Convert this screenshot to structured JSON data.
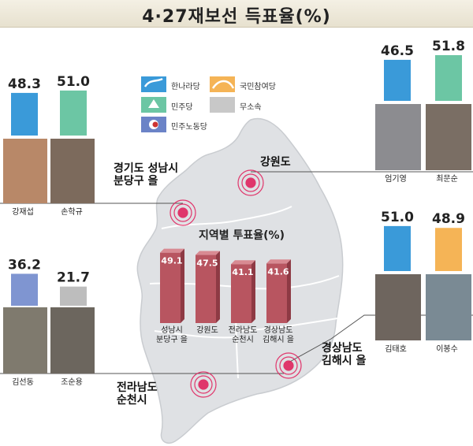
{
  "title": "4·27재보선 득표율(%)",
  "legend": [
    {
      "label": "한나라당",
      "color": "#3a9ad9",
      "icon": "hannara-party-icon"
    },
    {
      "label": "국민참여당",
      "color": "#f5b456",
      "icon": "participation-party-icon"
    },
    {
      "label": "민주당",
      "color": "#6cc6a4",
      "icon": "democratic-party-icon"
    },
    {
      "label": "무소속",
      "color": "#bdbdbd",
      "icon": "independent-icon"
    },
    {
      "label": "민주노동당",
      "color": "#7f95d1",
      "icon": "labor-party-icon"
    }
  ],
  "regions": {
    "seongnam": "경기도 성남시\n분당구 을",
    "gangwon": "강원도",
    "gimhae": "경상남도\n김해시 을",
    "suncheon": "전라남도\n순천시"
  },
  "chart_data": [
    {
      "type": "bar",
      "region": "경기도 성남시 분당구 을",
      "categories": [
        "강재섭",
        "손학규"
      ],
      "values": [
        48.3,
        51.0
      ],
      "colors": [
        "#3a9ad9",
        "#6cc6a4"
      ]
    },
    {
      "type": "bar",
      "region": "강원도",
      "categories": [
        "엄기영",
        "최문순"
      ],
      "values": [
        46.5,
        51.8
      ],
      "colors": [
        "#3a9ad9",
        "#6cc6a4"
      ]
    },
    {
      "type": "bar",
      "region": "경상남도 김해시 을",
      "categories": [
        "김태호",
        "이봉수"
      ],
      "values": [
        51.0,
        48.9
      ],
      "colors": [
        "#3a9ad9",
        "#f5b456"
      ]
    },
    {
      "type": "bar",
      "region": "전라남도 순천시",
      "categories": [
        "김선동",
        "조순용"
      ],
      "values": [
        36.2,
        21.7
      ],
      "colors": [
        "#7f95d1",
        "#bdbdbd"
      ]
    },
    {
      "type": "bar",
      "title": "지역별 투표율(%)",
      "categories": [
        "성남시\n분당구 을",
        "강원도",
        "전라남도\n순천시",
        "경상남도\n김해시 을"
      ],
      "values": [
        49.1,
        47.5,
        41.1,
        41.6
      ],
      "color": "#b85560"
    }
  ]
}
